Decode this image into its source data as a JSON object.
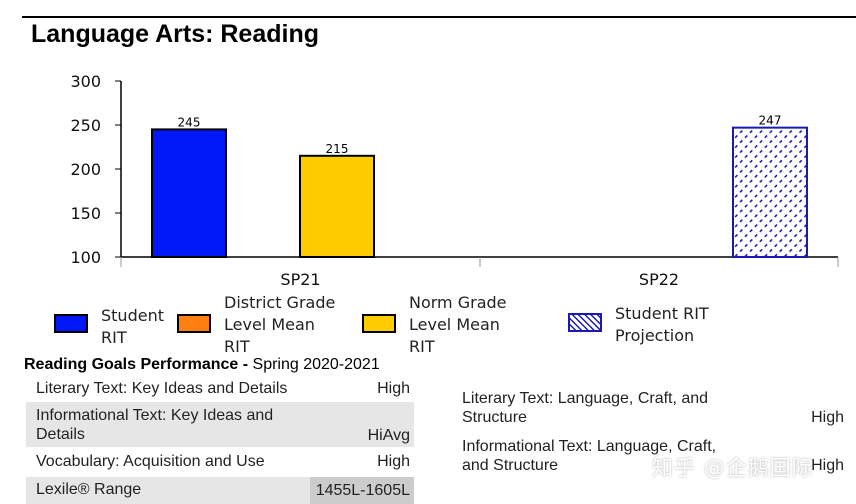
{
  "title": "Language Arts: Reading",
  "chart_data": {
    "type": "bar",
    "yticks": [
      300,
      250,
      200,
      150,
      100
    ],
    "ylim": [
      100,
      300
    ],
    "groups": [
      "SP21",
      "SP22"
    ],
    "bars": [
      {
        "group": "SP21",
        "series": "Student RIT",
        "value": 245,
        "label": "245",
        "color": "#0018f5"
      },
      {
        "group": "SP21",
        "series": "Norm Grade Level Mean RIT",
        "value": 215,
        "label": "215",
        "color": "#ffcc00"
      },
      {
        "group": "SP22",
        "series": "Student RIT Projection",
        "value": 247,
        "label": "247",
        "color": "#1a1ab0",
        "pattern": "dots"
      }
    ],
    "legend": [
      {
        "label": "Student\nRIT",
        "color": "#0018f5",
        "icon": "solid-swatch"
      },
      {
        "label": "District Grade\nLevel Mean\nRIT",
        "color": "#ff7f10",
        "icon": "solid-swatch"
      },
      {
        "label": "Norm Grade\nLevel Mean\nRIT",
        "color": "#ffcc00",
        "icon": "solid-swatch"
      },
      {
        "label": "Student RIT\nProjection",
        "color": "#1a1ab0",
        "icon": "dotted-swatch"
      }
    ]
  },
  "goals": {
    "heading": "Reading Goals Performance - ",
    "season": "Spring 2020-2021",
    "left": [
      {
        "name": "Literary Text: Key Ideas and Details",
        "value": "High"
      },
      {
        "name": "Informational Text: Key Ideas and\nDetails",
        "value": "HiAvg"
      },
      {
        "name": "Vocabulary: Acquisition and Use",
        "value": "High"
      }
    ],
    "lexile": {
      "name": "Lexile® Range",
      "value": "1455L-1605L"
    },
    "right": [
      {
        "name": "Literary Text: Language, Craft, and\nStructure",
        "value": "High"
      },
      {
        "name": "Informational Text: Language, Craft,\nand Structure",
        "value": "High"
      }
    ]
  },
  "watermark": "知乎 @企鹅国际"
}
